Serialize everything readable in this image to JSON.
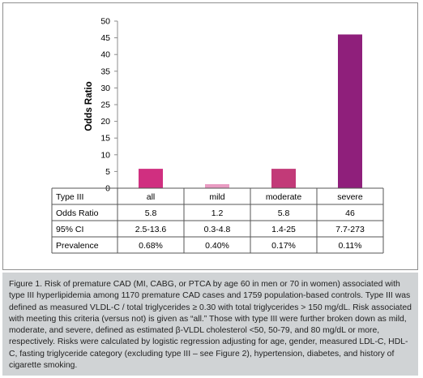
{
  "chart_data": {
    "type": "bar",
    "categories": [
      "all",
      "mild",
      "moderate",
      "severe"
    ],
    "values": [
      5.8,
      1.2,
      5.8,
      46
    ],
    "bar_colors": [
      "#d02f80",
      "#e99bc2",
      "#c23a78",
      "#8f1f7b"
    ],
    "xlabel": "",
    "ylabel": "Odds Ratio",
    "ylim": [
      0,
      50
    ],
    "yticks": [
      0,
      5,
      10,
      15,
      20,
      25,
      30,
      35,
      40,
      45,
      50
    ],
    "grid": false,
    "legend": "none"
  },
  "table": {
    "rows": [
      {
        "label": "Type III",
        "cells": [
          "all",
          "mild",
          "moderate",
          "severe"
        ]
      },
      {
        "label": "Odds Ratio",
        "cells": [
          "5.8",
          "1.2",
          "5.8",
          "46"
        ]
      },
      {
        "label": "95% CI",
        "cells": [
          "2.5-13.6",
          "0.3-4.8",
          "1.4-25",
          "7.7-273"
        ]
      },
      {
        "label": "Prevalence",
        "cells": [
          "0.68%",
          "0.40%",
          "0.17%",
          "0.11%"
        ]
      }
    ]
  },
  "caption": "Figure 1. Risk of premature CAD (MI, CABG, or PTCA by age 60 in men or 70 in women) associated with type III hyperlipidemia among 1170 premature CAD cases and 1759 population-based controls. Type III was defined as measured VLDL-C / total triglycerides ≥ 0.30 with total triglycerides > 150 mg/dL. Risk associated with meeting this criteria (versus not) is given as “all.” Those with type III were further broken down as mild, moderate, and severe, defined as estimated β-VLDL cholesterol <50, 50-79, and 80 mg/dL or more, respectively. Risks were calculated by logistic regression adjusting for age, gender, measured LDL-C, HDL-C, fasting triglyceride category (excluding type III – see Figure 2), hypertension, diabetes, and history of cigarette smoking.",
  "colors": {
    "panel_border": "#8f8f8f",
    "axis": "#8c8c8c",
    "table_line": "#555555",
    "caption_background": "#d0d3d5"
  }
}
